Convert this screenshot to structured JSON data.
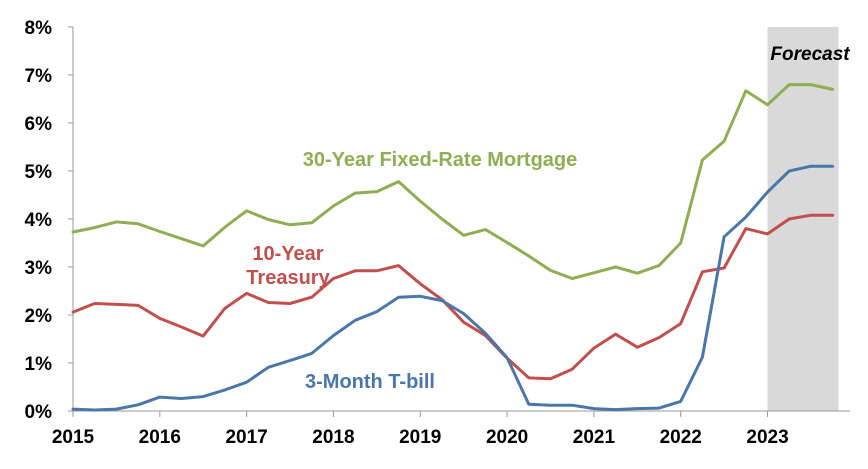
{
  "chart_data": {
    "type": "line",
    "ylim": [
      0,
      8
    ],
    "xlim": [
      2015,
      2023.95
    ],
    "y_ticks": [
      "0%",
      "1%",
      "2%",
      "3%",
      "4%",
      "5%",
      "6%",
      "7%",
      "8%"
    ],
    "x_ticks": [
      "2015",
      "2016",
      "2017",
      "2018",
      "2019",
      "2020",
      "2021",
      "2022",
      "2023"
    ],
    "grid": false,
    "forecast": {
      "label": "Forecast",
      "start": 2023.0,
      "end": 2023.75,
      "color": "#d9d9d9"
    },
    "series": [
      {
        "name": "30-Year Fixed-Rate Mortgage",
        "label_lines": [
          "30-Year Fixed-Rate Mortgage"
        ],
        "color": "#8fae54",
        "x": [
          2015,
          2015.25,
          2015.5,
          2015.75,
          2016,
          2016.25,
          2016.5,
          2016.75,
          2017,
          2017.25,
          2017.5,
          2017.75,
          2018,
          2018.25,
          2018.5,
          2018.75,
          2019,
          2019.25,
          2019.5,
          2019.75,
          2020,
          2020.25,
          2020.5,
          2020.75,
          2021,
          2021.25,
          2021.5,
          2021.75,
          2022,
          2022.25,
          2022.5,
          2022.75,
          2023,
          2023.25,
          2023.5,
          2023.75
        ],
        "y": [
          3.73,
          3.82,
          3.94,
          3.9,
          3.74,
          3.59,
          3.44,
          3.83,
          4.17,
          3.99,
          3.88,
          3.92,
          4.27,
          4.54,
          4.57,
          4.78,
          4.37,
          4.0,
          3.66,
          3.78,
          3.51,
          3.23,
          2.93,
          2.76,
          2.88,
          3.0,
          2.87,
          3.03,
          3.5,
          5.23,
          5.62,
          6.67,
          6.38,
          6.8,
          6.8,
          6.7
        ]
      },
      {
        "name": "10-Year Treasury",
        "label_lines": [
          "10-Year",
          "Treasury"
        ],
        "color": "#c0504d",
        "x": [
          2015,
          2015.25,
          2015.5,
          2015.75,
          2016,
          2016.25,
          2016.5,
          2016.75,
          2017,
          2017.25,
          2017.5,
          2017.75,
          2018,
          2018.25,
          2018.5,
          2018.75,
          2019,
          2019.25,
          2019.5,
          2019.75,
          2020,
          2020.25,
          2020.5,
          2020.75,
          2021,
          2021.25,
          2021.5,
          2021.75,
          2022,
          2022.25,
          2022.5,
          2022.75,
          2023,
          2023.25,
          2023.5,
          2023.75
        ],
        "y": [
          2.06,
          2.24,
          2.22,
          2.2,
          1.93,
          1.75,
          1.56,
          2.14,
          2.45,
          2.26,
          2.24,
          2.37,
          2.76,
          2.92,
          2.92,
          3.03,
          2.65,
          2.32,
          1.85,
          1.57,
          1.1,
          0.69,
          0.67,
          0.87,
          1.31,
          1.6,
          1.33,
          1.53,
          1.82,
          2.9,
          2.98,
          3.8,
          3.69,
          4.0,
          4.08,
          4.08
        ]
      },
      {
        "name": "3-Month T-bill",
        "label_lines": [
          "3-Month T-bill"
        ],
        "color": "#4a77a8",
        "x": [
          2015,
          2015.25,
          2015.5,
          2015.75,
          2016,
          2016.25,
          2016.5,
          2016.75,
          2017,
          2017.25,
          2017.5,
          2017.75,
          2018,
          2018.25,
          2018.5,
          2018.75,
          2019,
          2019.25,
          2019.5,
          2019.75,
          2020,
          2020.25,
          2020.5,
          2020.75,
          2021,
          2021.25,
          2021.5,
          2021.75,
          2022,
          2022.25,
          2022.5,
          2022.75,
          2023,
          2023.25,
          2023.5,
          2023.75
        ],
        "y": [
          0.04,
          0.02,
          0.04,
          0.13,
          0.29,
          0.26,
          0.3,
          0.44,
          0.6,
          0.91,
          1.05,
          1.2,
          1.57,
          1.89,
          2.07,
          2.37,
          2.39,
          2.3,
          2.03,
          1.62,
          1.11,
          0.14,
          0.12,
          0.12,
          0.05,
          0.03,
          0.05,
          0.06,
          0.2,
          1.12,
          3.63,
          4.04,
          4.56,
          5.0,
          5.1,
          5.1
        ]
      }
    ]
  }
}
